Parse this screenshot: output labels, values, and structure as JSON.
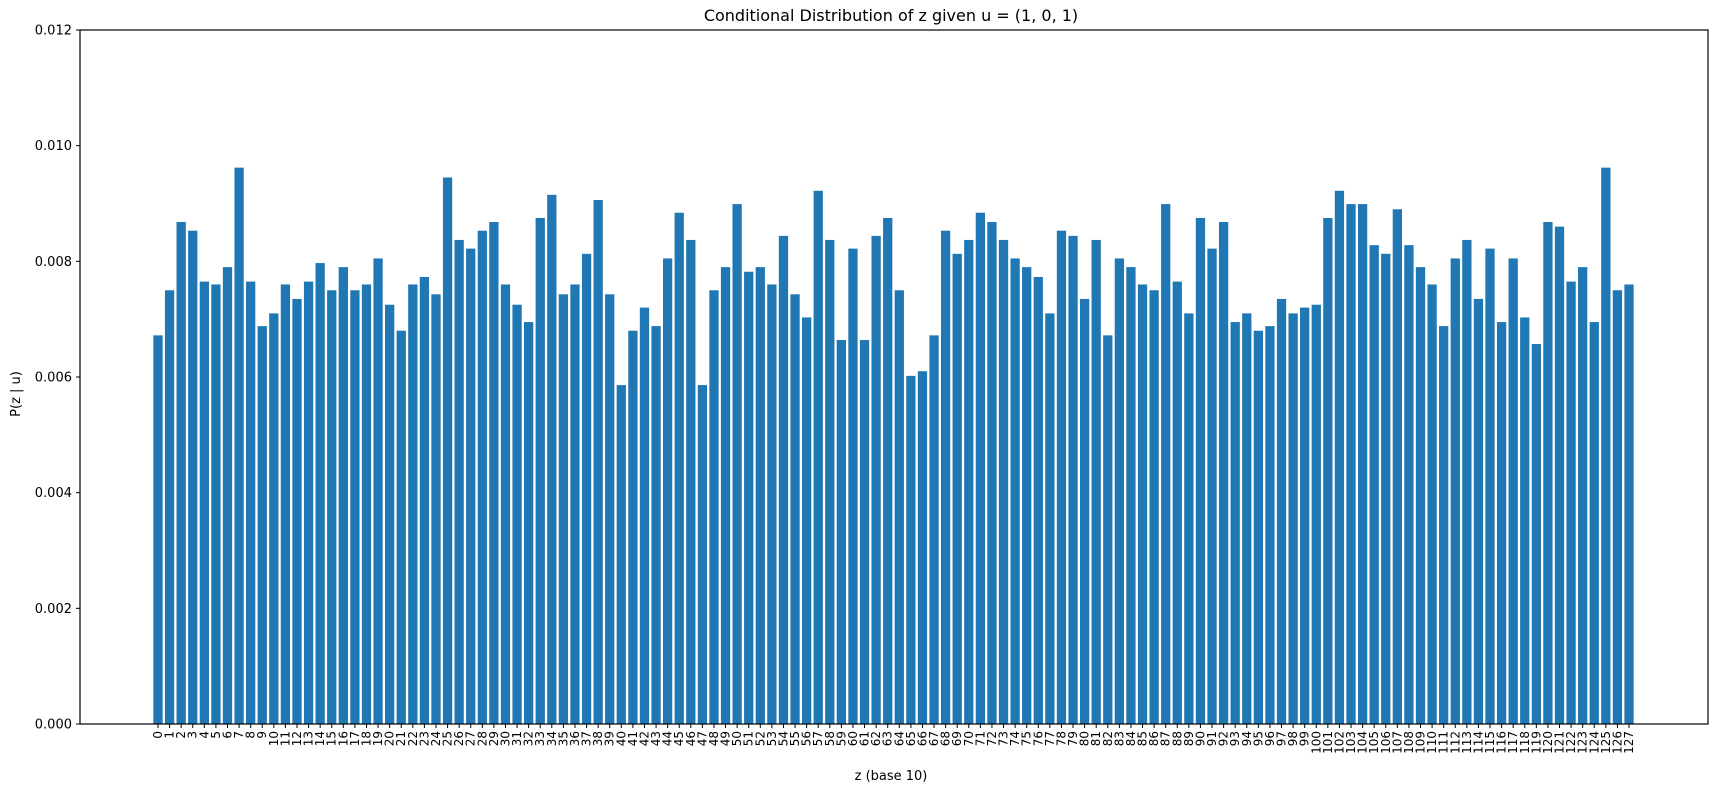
{
  "chart_data": {
    "type": "bar",
    "title": "Conditional Distribution of z given u = (1, 0, 1)",
    "xlabel": "z (base 10)",
    "ylabel": "P(z | u)",
    "ylim": [
      0,
      0.012
    ],
    "yticks": [
      "0.000",
      "0.002",
      "0.004",
      "0.006",
      "0.008",
      "0.010",
      "0.012"
    ],
    "grid": false,
    "legend": "none",
    "bar_color": "#1f77b4",
    "categories": [
      "0",
      "1",
      "2",
      "3",
      "4",
      "5",
      "6",
      "7",
      "8",
      "9",
      "10",
      "11",
      "12",
      "13",
      "14",
      "15",
      "16",
      "17",
      "18",
      "19",
      "20",
      "21",
      "22",
      "23",
      "24",
      "25",
      "26",
      "27",
      "28",
      "29",
      "30",
      "31",
      "32",
      "33",
      "34",
      "35",
      "36",
      "37",
      "38",
      "39",
      "40",
      "41",
      "42",
      "43",
      "44",
      "45",
      "46",
      "47",
      "48",
      "49",
      "50",
      "51",
      "52",
      "53",
      "54",
      "55",
      "56",
      "57",
      "58",
      "59",
      "60",
      "61",
      "62",
      "63",
      "64",
      "65",
      "66",
      "67",
      "68",
      "69",
      "70",
      "71",
      "72",
      "73",
      "74",
      "75",
      "76",
      "77",
      "78",
      "79",
      "80",
      "81",
      "82",
      "83",
      "84",
      "85",
      "86",
      "87",
      "88",
      "89",
      "90",
      "91",
      "92",
      "93",
      "94",
      "95",
      "96",
      "97",
      "98",
      "99",
      "100",
      "101",
      "102",
      "103",
      "104",
      "105",
      "106",
      "107",
      "108",
      "109",
      "110",
      "111",
      "112",
      "113",
      "114",
      "115",
      "116",
      "117",
      "118",
      "119",
      "120",
      "121",
      "122",
      "123",
      "124",
      "125",
      "126",
      "127"
    ],
    "values": [
      0.00672,
      0.0075,
      0.00868,
      0.00853,
      0.00765,
      0.0076,
      0.0079,
      0.00962,
      0.00765,
      0.00688,
      0.0071,
      0.0076,
      0.00735,
      0.00765,
      0.00797,
      0.0075,
      0.0079,
      0.0075,
      0.0076,
      0.00805,
      0.00725,
      0.0068,
      0.0076,
      0.00773,
      0.00743,
      0.00945,
      0.00837,
      0.00822,
      0.00853,
      0.00868,
      0.0076,
      0.00725,
      0.00695,
      0.00875,
      0.00915,
      0.00743,
      0.0076,
      0.00813,
      0.00906,
      0.00743,
      0.00586,
      0.0068,
      0.0072,
      0.00688,
      0.00805,
      0.00884,
      0.00837,
      0.00586,
      0.0075,
      0.0079,
      0.00899,
      0.00782,
      0.0079,
      0.0076,
      0.00844,
      0.00743,
      0.00703,
      0.00922,
      0.00837,
      0.00664,
      0.00822,
      0.00664,
      0.00844,
      0.00875,
      0.0075,
      0.00602,
      0.0061,
      0.00672,
      0.00853,
      0.00813,
      0.00837,
      0.00884,
      0.00868,
      0.00837,
      0.00805,
      0.0079,
      0.00773,
      0.0071,
      0.00853,
      0.00844,
      0.00735,
      0.00837,
      0.00672,
      0.00805,
      0.0079,
      0.0076,
      0.0075,
      0.00899,
      0.00765,
      0.0071,
      0.00875,
      0.00822,
      0.00868,
      0.00695,
      0.0071,
      0.0068,
      0.00688,
      0.00735,
      0.0071,
      0.0072,
      0.00725,
      0.00875,
      0.00922,
      0.00899,
      0.00899,
      0.00828,
      0.00813,
      0.0089,
      0.00828,
      0.0079,
      0.0076,
      0.00688,
      0.00805,
      0.00837,
      0.00735,
      0.00822,
      0.00695,
      0.00805,
      0.00703,
      0.00657,
      0.00868,
      0.0086,
      0.00765,
      0.0079,
      0.00695,
      0.00962,
      0.0075,
      0.0076
    ]
  }
}
